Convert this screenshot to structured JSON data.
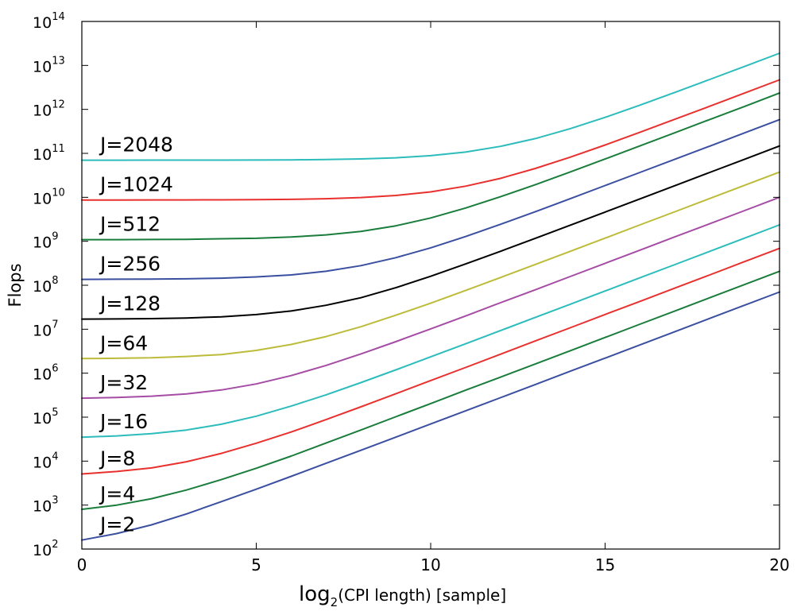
{
  "chart_data": {
    "type": "line",
    "title": "",
    "xlabel": {
      "main": "log",
      "sub": "2",
      "paren": "(CPI length)",
      "unit": "[sample]"
    },
    "ylabel": "Flops",
    "xlim": [
      0,
      20
    ],
    "ylim": [
      100,
      100000000000000
    ],
    "yscale": "log",
    "grid": false,
    "legend": "none",
    "x_ticks": [
      {
        "value": 0,
        "label": "0"
      },
      {
        "value": 5,
        "label": "5"
      },
      {
        "value": 10,
        "label": "10"
      },
      {
        "value": 15,
        "label": "15"
      },
      {
        "value": 20,
        "label": "20"
      }
    ],
    "y_ticks": [
      {
        "exp": 2,
        "base": "10",
        "power": "2"
      },
      {
        "exp": 3,
        "base": "10",
        "power": "3"
      },
      {
        "exp": 4,
        "base": "10",
        "power": "4"
      },
      {
        "exp": 5,
        "base": "10",
        "power": "5"
      },
      {
        "exp": 6,
        "base": "10",
        "power": "6"
      },
      {
        "exp": 7,
        "base": "10",
        "power": "7"
      },
      {
        "exp": 8,
        "base": "10",
        "power": "8"
      },
      {
        "exp": 9,
        "base": "10",
        "power": "9"
      },
      {
        "exp": 10,
        "base": "10",
        "power": "10"
      },
      {
        "exp": 11,
        "base": "10",
        "power": "11"
      },
      {
        "exp": 12,
        "base": "10",
        "power": "12"
      },
      {
        "exp": 13,
        "base": "10",
        "power": "13"
      },
      {
        "exp": 14,
        "base": "10",
        "power": "14"
      }
    ],
    "x": [
      0,
      1,
      2,
      3,
      4,
      5,
      6,
      7,
      8,
      9,
      10,
      11,
      12,
      13,
      14,
      15,
      16,
      17,
      18,
      19,
      20
    ],
    "series": [
      {
        "name": "J=2",
        "color": "#3b4fa0",
        "values": [
          160,
          225,
          356,
          630,
          1200,
          2300,
          4500,
          8900,
          17600,
          35000,
          70000,
          139000,
          277000,
          553000,
          1110000,
          2200000,
          4400000,
          8800000,
          17600000,
          35200000,
          70300000
        ]
      },
      {
        "name": "J=4",
        "color": "#1a7d3c",
        "values": [
          800,
          1000,
          1400,
          2200,
          3800,
          6900,
          13000,
          25800,
          51000,
          102000,
          204000,
          410000,
          810000,
          1620000,
          3240000,
          6500000,
          13000000,
          26000000,
          52000000,
          104000000,
          208000000
        ]
      },
      {
        "name": "J=8",
        "color": "#e8312e",
        "values": [
          5100,
          5800,
          7000,
          9700,
          15000,
          25500,
          46000,
          88000,
          172000,
          340000,
          680000,
          1350000,
          2700000,
          5400000,
          10800000,
          21600000,
          43000000,
          86000000,
          172000000,
          345000000,
          690000000
        ]
      },
      {
        "name": "J=16",
        "color": "#2dbcbc",
        "values": [
          35000,
          37500,
          42000,
          51000,
          69000,
          105000,
          178000,
          322000,
          612000,
          1190000,
          2350000,
          4650000,
          9300000,
          18600000,
          37000000,
          74000000,
          148000000,
          295000000,
          590000000,
          1180000000,
          2360000000
        ]
      },
      {
        "name": "J=32",
        "color": "#a54ca5",
        "values": [
          270000,
          280000,
          300000,
          338000,
          415000,
          570000,
          880000,
          1500000,
          2750000,
          5200000,
          10200000,
          20000000,
          40000000,
          79000000,
          158000000,
          315000000,
          630000000,
          1260000000,
          2500000000,
          5000000000,
          10000000000
        ]
      },
      {
        "name": "J=64",
        "color": "#bcbc3a",
        "values": [
          2150000,
          2180000,
          2240000,
          2400000,
          2650000,
          3300000,
          4500000,
          6800000,
          11400000,
          20800000,
          39000000,
          76000000,
          150000000,
          298000000,
          590000000,
          1180000000,
          2360000000,
          4700000000,
          9400000000,
          18800000000,
          37500000000
        ]
      },
      {
        "name": "J=128",
        "color": "#000000",
        "values": [
          17000000,
          17100000,
          17400000,
          18000000,
          19200000,
          21500000,
          26000000,
          35000000,
          52000000,
          88000000,
          160000000,
          305000000,
          590000000,
          1170000000,
          2320000000,
          4620000000,
          9200000000,
          18400000000,
          36800000000,
          73500000000,
          147000000000
        ]
      },
      {
        "name": "J=256",
        "color": "#3b4fa0",
        "values": [
          136000000,
          137000000,
          138000000,
          140000000,
          145000000,
          155000000,
          172000000,
          208000000,
          280000000,
          423000000,
          710000000,
          1280000000,
          2430000000,
          4720000000,
          9300000000,
          18500000000,
          36800000000,
          73400000000,
          146000000000,
          293000000000,
          585000000000
        ]
      },
      {
        "name": "J=512",
        "color": "#1a7d3c",
        "values": [
          1090000000,
          1090000000,
          1100000000,
          1110000000,
          1140000000,
          1170000000,
          1250000000,
          1400000000,
          1680000000,
          2250000000,
          3400000000,
          5700000000,
          10300000000,
          19400000000,
          37800000000,
          74500000000,
          148000000000,
          294000000000,
          588000000000,
          1170000000000,
          2350000000000
        ]
      },
      {
        "name": "J=1024",
        "color": "#e8312e",
        "values": [
          8700000000,
          8710000000,
          8720000000,
          8740000000,
          8780000000,
          8850000000,
          9000000000,
          9300000000,
          9900000000,
          11000000000,
          13300000000,
          17900000000,
          27000000000,
          45400000000,
          82000000000,
          155000000000,
          302000000000,
          596000000000,
          1180000000000,
          2350000000000,
          4700000000000
        ]
      },
      {
        "name": "J=2048",
        "color": "#2dbcbc",
        "values": [
          70000000000,
          70000000000,
          70100000000,
          70200000000,
          70300000000,
          70600000000,
          71200000000,
          72300000000,
          74700000000,
          79300000000,
          88500000000,
          107000000000,
          144000000000,
          217000000000,
          365000000000,
          660000000000,
          1250000000000,
          2430000000000,
          4800000000000,
          9500000000000,
          18900000000000
        ]
      }
    ]
  }
}
